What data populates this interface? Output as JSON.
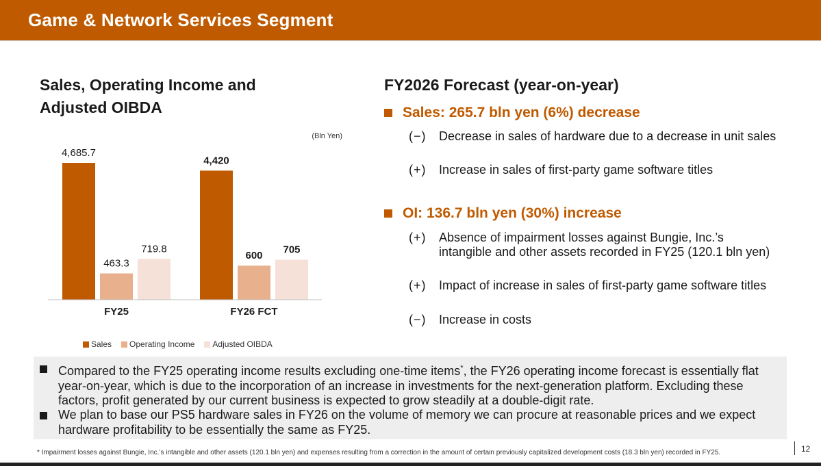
{
  "header": {
    "title": "Game & Network Services Segment"
  },
  "chart": {
    "title_line1": "Sales, Operating Income and",
    "title_line2": "Adjusted OIBDA",
    "unit": "(Bln Yen)",
    "legend": [
      "Sales",
      "Operating Income",
      "Adjusted OIBDA"
    ]
  },
  "chart_data": {
    "type": "bar",
    "categories": [
      "FY25",
      "FY26 FCT"
    ],
    "series": [
      {
        "name": "Sales",
        "values": [
          4685.7,
          4420
        ],
        "labels": [
          "4,685.7",
          "4,420"
        ],
        "color": "#c05a00"
      },
      {
        "name": "Operating Income",
        "values": [
          463.3,
          600
        ],
        "labels": [
          "463.3",
          "600"
        ],
        "color": "#e8b08c"
      },
      {
        "name": "Adjusted OIBDA",
        "values": [
          719.8,
          705
        ],
        "labels": [
          "719.8",
          "705"
        ],
        "color": "#f5e1d8"
      }
    ],
    "bold_categories": [
      false,
      true
    ],
    "ylabel": "",
    "unit": "(Bln Yen)",
    "legend_position": "bottom",
    "grid": false
  },
  "forecast": {
    "title": "FY2026 Forecast (year-on-year)",
    "sales_heading": "Sales: 265.7 bln yen (6%) decrease",
    "sales_items": [
      {
        "sign": "(−)",
        "text": "Decrease in sales of hardware due to a decrease in unit sales"
      },
      {
        "sign": "(+)",
        "text": "Increase in sales of first-party game software titles"
      }
    ],
    "oi_heading": "OI: 136.7 bln yen (30%) increase",
    "oi_items": [
      {
        "sign": "(+)",
        "text": "Absence of impairment losses against Bungie, Inc.’s intangible and other assets recorded in FY25 (120.1 bln yen)"
      },
      {
        "sign": "(+)",
        "text": "Impact of increase in sales of first-party game software titles"
      },
      {
        "sign": "(−)",
        "text": "Increase in costs"
      }
    ]
  },
  "notes": [
    {
      "before": "Compared to the FY25 operating income results excluding one-time items",
      "sup": "*",
      "after": ", the FY26 operating income forecast is essentially flat year-on-year, which is due to the incorporation of an increase in investments for the next-generation platform. Excluding these factors, profit generated by our current business is expected to grow steadily at a double-digit rate."
    },
    {
      "before": "We plan to base our PS5 hardware sales in FY26 on the volume of memory we can procure at reasonable prices and we expect hardware profitability to be essentially the same as FY25.",
      "sup": "",
      "after": ""
    }
  ],
  "footnote": "* Impairment losses against Bungie, Inc.’s intangible and other assets (120.1 bln yen) and expenses resulting from a correction in the amount of certain previously capitalized development costs (18.3 bln yen) recorded in FY25.",
  "page_number": "12"
}
